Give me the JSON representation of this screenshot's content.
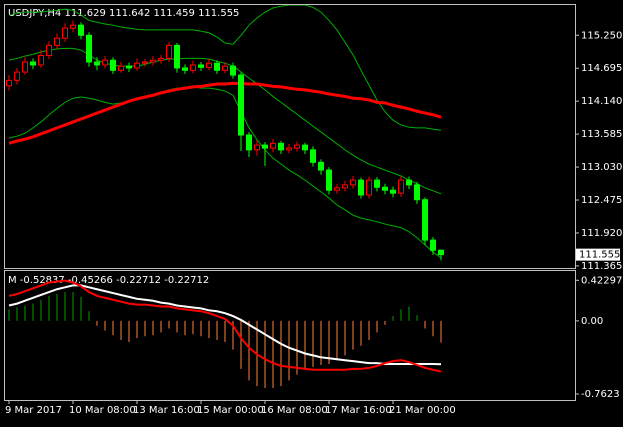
{
  "chart_data": [
    {
      "type": "candlestick",
      "title": "USDJPY,H4  111.629 111.642 111.459 111.555",
      "ylim": [
        111.33,
        115.76
      ],
      "yticks": [
        {
          "value": 115.25,
          "label": "115.250"
        },
        {
          "value": 114.695,
          "label": "114.695"
        },
        {
          "value": 114.14,
          "label": "114.140"
        },
        {
          "value": 113.585,
          "label": "113.585"
        },
        {
          "value": 113.03,
          "label": "113.030"
        },
        {
          "value": 112.475,
          "label": "112.475"
        },
        {
          "value": 111.92,
          "label": "111.920"
        },
        {
          "value": 111.365,
          "label": "111.365"
        }
      ],
      "last_price": 111.555,
      "up_color": "#ff0000",
      "down_color": "#00ff00",
      "open": [
        114.4,
        114.49,
        114.63,
        114.8,
        114.75,
        114.91,
        115.08,
        115.2,
        115.37,
        115.42,
        115.25,
        114.8,
        114.75,
        114.83,
        114.66,
        114.73,
        114.7,
        114.78,
        114.8,
        114.83,
        114.86,
        115.08,
        114.7,
        114.66,
        114.75,
        114.71,
        114.78,
        114.66,
        114.73,
        114.58,
        113.57,
        113.32,
        113.4,
        113.35,
        113.43,
        113.32,
        113.35,
        113.4,
        113.32,
        113.11,
        112.98,
        112.64,
        112.68,
        112.73,
        112.81,
        112.56,
        112.81,
        112.69,
        112.64,
        112.59,
        112.81,
        112.73,
        112.48,
        111.8,
        111.629
      ],
      "high": [
        114.58,
        114.7,
        114.88,
        114.86,
        115.0,
        115.15,
        115.28,
        115.45,
        115.5,
        115.47,
        115.3,
        114.88,
        114.9,
        114.88,
        114.8,
        114.79,
        114.86,
        114.85,
        114.9,
        114.92,
        115.14,
        115.12,
        114.76,
        114.82,
        114.8,
        114.85,
        114.83,
        114.8,
        114.79,
        114.62,
        113.62,
        113.48,
        113.45,
        113.5,
        113.47,
        113.42,
        113.46,
        113.44,
        113.38,
        113.16,
        113.03,
        112.75,
        112.8,
        112.88,
        112.85,
        112.87,
        112.86,
        112.75,
        112.7,
        112.88,
        112.87,
        112.78,
        112.52,
        111.85,
        111.642
      ],
      "low": [
        114.32,
        114.42,
        114.58,
        114.68,
        114.7,
        114.85,
        115.02,
        115.14,
        115.3,
        115.18,
        114.72,
        114.66,
        114.69,
        114.6,
        114.62,
        114.63,
        114.65,
        114.72,
        114.74,
        114.77,
        114.8,
        114.62,
        114.6,
        114.61,
        114.65,
        114.66,
        114.6,
        114.61,
        114.52,
        113.3,
        113.2,
        113.22,
        113.05,
        113.28,
        113.25,
        113.26,
        113.29,
        113.25,
        113.04,
        112.9,
        112.57,
        112.58,
        112.62,
        112.67,
        112.5,
        112.5,
        112.62,
        112.57,
        112.52,
        112.53,
        112.66,
        112.41,
        111.72,
        111.55,
        111.459
      ],
      "close": [
        114.49,
        114.63,
        114.8,
        114.75,
        114.91,
        115.08,
        115.2,
        115.37,
        115.42,
        115.25,
        114.8,
        114.75,
        114.83,
        114.66,
        114.73,
        114.7,
        114.78,
        114.8,
        114.83,
        114.86,
        115.08,
        114.7,
        114.66,
        114.75,
        114.71,
        114.78,
        114.66,
        114.73,
        114.58,
        113.57,
        113.32,
        113.4,
        113.35,
        113.43,
        113.32,
        113.35,
        113.4,
        113.32,
        113.11,
        112.98,
        112.64,
        112.68,
        112.73,
        112.81,
        112.56,
        112.81,
        112.69,
        112.64,
        112.59,
        112.81,
        112.73,
        112.48,
        111.8,
        111.629,
        111.555
      ],
      "series": [
        {
          "color": "#00b000",
          "values": [
            115.59,
            115.62,
            115.64,
            115.64,
            115.64,
            115.66,
            115.67,
            115.69,
            115.67,
            115.59,
            115.5,
            115.47,
            115.44,
            115.42,
            115.39,
            115.37,
            115.35,
            115.34,
            115.34,
            115.34,
            115.34,
            115.34,
            115.34,
            115.34,
            115.32,
            115.29,
            115.22,
            115.12,
            115.1,
            115.25,
            115.42,
            115.54,
            115.64,
            115.71,
            115.74,
            115.76,
            115.76,
            115.76,
            115.72,
            115.64,
            115.5,
            115.34,
            115.13,
            114.92,
            114.66,
            114.41,
            114.16,
            113.96,
            113.82,
            113.74,
            113.7,
            113.69,
            113.69,
            113.67,
            113.65
          ]
        },
        {
          "color": "#00b000",
          "values": [
            114.83,
            114.86,
            114.9,
            114.93,
            114.97,
            115.0,
            115.02,
            115.03,
            115.03,
            115.0,
            114.92,
            114.83,
            114.78,
            114.75,
            114.73,
            114.73,
            114.73,
            114.76,
            114.8,
            114.83,
            114.85,
            114.85,
            114.86,
            114.86,
            114.86,
            114.85,
            114.81,
            114.78,
            114.73,
            114.63,
            114.53,
            114.43,
            114.33,
            114.22,
            114.12,
            114.02,
            113.92,
            113.82,
            113.72,
            113.62,
            113.52,
            113.42,
            113.32,
            113.23,
            113.15,
            113.08,
            113.03,
            112.98,
            112.93,
            112.88,
            112.81,
            112.75,
            112.68,
            112.63,
            112.58
          ]
        },
        {
          "color": "#00b000",
          "values": [
            113.52,
            113.55,
            113.6,
            113.69,
            113.79,
            113.91,
            114.02,
            114.12,
            114.19,
            114.21,
            114.19,
            114.16,
            114.12,
            114.09,
            114.11,
            114.14,
            114.18,
            114.21,
            114.24,
            114.29,
            114.33,
            114.36,
            114.36,
            114.38,
            114.36,
            114.36,
            114.34,
            114.31,
            114.24,
            113.96,
            113.69,
            113.49,
            113.32,
            113.18,
            113.08,
            112.98,
            112.9,
            112.81,
            112.71,
            112.61,
            112.51,
            112.39,
            112.31,
            112.22,
            112.17,
            112.14,
            112.11,
            112.07,
            112.04,
            112.01,
            111.94,
            111.84,
            111.72,
            111.6,
            111.5
          ]
        },
        {
          "color": "#ff0000",
          "values": [
            113.43,
            113.47,
            113.5,
            113.54,
            113.59,
            113.64,
            113.69,
            113.74,
            113.79,
            113.84,
            113.89,
            113.94,
            113.99,
            114.04,
            114.09,
            114.14,
            114.18,
            114.21,
            114.24,
            114.28,
            114.31,
            114.34,
            114.36,
            114.38,
            114.39,
            114.41,
            114.43,
            114.43,
            114.44,
            114.44,
            114.43,
            114.43,
            114.41,
            114.39,
            114.38,
            114.36,
            114.34,
            114.33,
            114.31,
            114.29,
            114.26,
            114.24,
            114.22,
            114.19,
            114.18,
            114.16,
            114.12,
            114.11,
            114.07,
            114.04,
            114.01,
            113.97,
            113.94,
            113.91,
            113.87
          ]
        }
      ]
    },
    {
      "type": "bar",
      "title": "M -0.52837 -0.45266 -0.22712 -0.22712",
      "ylim": [
        -0.825,
        0.52
      ],
      "yticks": [
        0.42297,
        {
          "value": 0,
          "label": "0.00"
        },
        -0.7623
      ],
      "categories": [
        "9 Mar 2017",
        null,
        null,
        null,
        null,
        null,
        null,
        null,
        "10 Mar 08:00",
        null,
        null,
        null,
        null,
        null,
        null,
        null,
        "13 Mar 16:00",
        null,
        null,
        null,
        null,
        null,
        null,
        null,
        "15 Mar 00:00",
        null,
        null,
        null,
        null,
        null,
        null,
        null,
        "16 Mar 08:00",
        null,
        null,
        null,
        null,
        null,
        null,
        null,
        "17 Mar 16:00",
        null,
        null,
        null,
        null,
        null,
        null,
        null,
        "21 Mar 00:00",
        null,
        null,
        null,
        null,
        null,
        null
      ],
      "up_color": "#00a000",
      "down_color": "#ff8040",
      "values": [
        0.12,
        0.14,
        0.16,
        0.18,
        0.22,
        0.26,
        0.28,
        0.3,
        0.3,
        0.25,
        0.1,
        -0.05,
        -0.1,
        -0.15,
        -0.2,
        -0.22,
        -0.18,
        -0.16,
        -0.15,
        -0.12,
        -0.08,
        -0.12,
        -0.15,
        -0.14,
        -0.16,
        -0.18,
        -0.2,
        -0.22,
        -0.3,
        -0.5,
        -0.62,
        -0.68,
        -0.7,
        -0.7,
        -0.68,
        -0.62,
        -0.56,
        -0.5,
        -0.48,
        -0.46,
        -0.45,
        -0.4,
        -0.36,
        -0.3,
        -0.26,
        -0.2,
        -0.12,
        -0.04,
        0.05,
        0.12,
        0.15,
        0.06,
        -0.08,
        -0.16,
        -0.22712
      ],
      "series": [
        {
          "color": "#ffffff",
          "values": [
            0.16,
            0.18,
            0.21,
            0.24,
            0.27,
            0.3,
            0.33,
            0.35,
            0.37,
            0.37,
            0.35,
            0.33,
            0.31,
            0.29,
            0.27,
            0.25,
            0.23,
            0.22,
            0.21,
            0.19,
            0.18,
            0.16,
            0.15,
            0.14,
            0.13,
            0.11,
            0.1,
            0.08,
            0.05,
            0.01,
            -0.04,
            -0.09,
            -0.14,
            -0.19,
            -0.24,
            -0.28,
            -0.31,
            -0.34,
            -0.36,
            -0.38,
            -0.39,
            -0.4,
            -0.41,
            -0.42,
            -0.43,
            -0.44,
            -0.44,
            -0.45,
            -0.45,
            -0.45,
            -0.45,
            -0.45,
            -0.45,
            -0.45,
            -0.45266
          ]
        },
        {
          "color": "#ff0000",
          "values": [
            0.26,
            0.28,
            0.31,
            0.34,
            0.37,
            0.4,
            0.41,
            0.42,
            0.4,
            0.36,
            0.3,
            0.26,
            0.24,
            0.22,
            0.2,
            0.18,
            0.17,
            0.17,
            0.16,
            0.15,
            0.15,
            0.13,
            0.12,
            0.11,
            0.1,
            0.08,
            0.05,
            0.02,
            -0.05,
            -0.18,
            -0.28,
            -0.35,
            -0.4,
            -0.44,
            -0.47,
            -0.48,
            -0.49,
            -0.5,
            -0.51,
            -0.51,
            -0.51,
            -0.51,
            -0.51,
            -0.5,
            -0.5,
            -0.49,
            -0.47,
            -0.44,
            -0.42,
            -0.41,
            -0.43,
            -0.46,
            -0.49,
            -0.51,
            -0.52837
          ]
        }
      ]
    }
  ]
}
